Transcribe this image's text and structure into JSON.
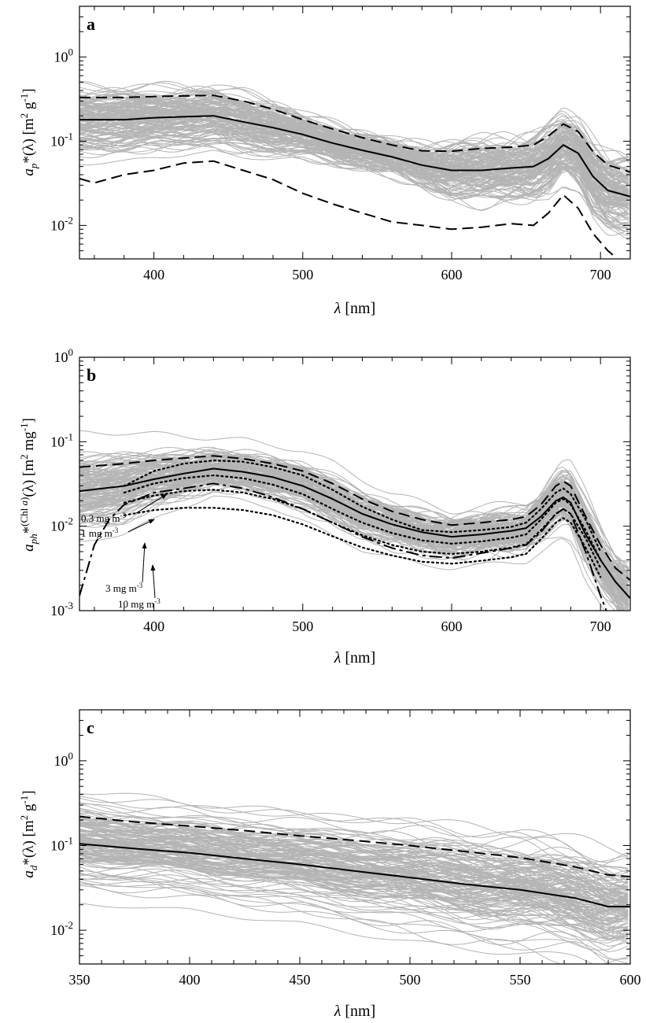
{
  "chart_data": [
    {
      "panel": "a",
      "type": "line",
      "xlabel": {
        "sym": "λ",
        "rest": " [nm]"
      },
      "ylabel": {
        "main": "a",
        "sub": "p",
        "mid": "*(λ) [m",
        "sup1": "2",
        "mid2": " g",
        "sup2": "-1",
        "end": "]"
      },
      "xlim": [
        350,
        720
      ],
      "ylim": [
        0.004,
        4
      ],
      "yscale": "log",
      "xticks": [
        400,
        500,
        600,
        700
      ],
      "yticks": [
        {
          "value": 0.01,
          "base": "10",
          "exp": "-2"
        },
        {
          "value": 0.1,
          "base": "10",
          "exp": "-1"
        },
        {
          "value": 1,
          "base": "10",
          "exp": "0"
        }
      ],
      "grid": false,
      "background_spectra": "many individual spectra (gray)",
      "series": [
        {
          "role": "mean",
          "style": "solid",
          "x": [
            350,
            380,
            400,
            420,
            440,
            460,
            480,
            500,
            520,
            540,
            560,
            580,
            600,
            620,
            640,
            655,
            665,
            675,
            685,
            695,
            705,
            720
          ],
          "y": [
            0.18,
            0.18,
            0.19,
            0.195,
            0.2,
            0.17,
            0.145,
            0.12,
            0.095,
            0.078,
            0.065,
            0.052,
            0.045,
            0.045,
            0.048,
            0.05,
            0.062,
            0.09,
            0.072,
            0.038,
            0.026,
            0.022
          ]
        },
        {
          "role": "upper",
          "style": "dashed",
          "x": [
            350,
            380,
            400,
            420,
            440,
            460,
            480,
            500,
            520,
            540,
            560,
            580,
            600,
            620,
            640,
            655,
            665,
            675,
            685,
            695,
            705,
            720
          ],
          "y": [
            0.33,
            0.33,
            0.34,
            0.345,
            0.35,
            0.3,
            0.24,
            0.18,
            0.14,
            0.11,
            0.09,
            0.077,
            0.076,
            0.082,
            0.085,
            0.09,
            0.115,
            0.16,
            0.13,
            0.075,
            0.052,
            0.043
          ]
        },
        {
          "role": "lower",
          "style": "dashed",
          "x": [
            350,
            360,
            380,
            400,
            420,
            440,
            460,
            480,
            500,
            520,
            540,
            560,
            580,
            600,
            620,
            640,
            655,
            665,
            675,
            685,
            695,
            705,
            710
          ],
          "y": [
            0.036,
            0.032,
            0.04,
            0.045,
            0.055,
            0.058,
            0.045,
            0.035,
            0.024,
            0.018,
            0.014,
            0.011,
            0.01,
            0.009,
            0.0095,
            0.0105,
            0.01,
            0.014,
            0.023,
            0.016,
            0.008,
            0.005,
            0.0042
          ]
        }
      ]
    },
    {
      "panel": "b",
      "type": "line",
      "xlabel": {
        "sym": "λ",
        "rest": " [nm]"
      },
      "ylabel": {
        "main": "a",
        "sub": "ph",
        "mid": "*",
        "supChl": "(Chl ",
        "supA": "a",
        "supClose": ")",
        "mid2": "(λ) [m",
        "sup1": "2",
        "mid3": " mg",
        "sup2": "-1",
        "end": "]"
      },
      "xlim": [
        350,
        720
      ],
      "ylim": [
        0.001,
        1
      ],
      "yscale": "log",
      "xticks": [
        400,
        500,
        600,
        700
      ],
      "yticks": [
        {
          "value": 0.001,
          "base": "10",
          "exp": "-3"
        },
        {
          "value": 0.01,
          "base": "10",
          "exp": "-2"
        },
        {
          "value": 0.1,
          "base": "10",
          "exp": "-1"
        },
        {
          "value": 1,
          "base": "10",
          "exp": "0"
        }
      ],
      "grid": false,
      "background_spectra": "many individual spectra (gray)",
      "annotations": [
        {
          "text": "0.3 mg m",
          "exp": "-3"
        },
        {
          "text": "1 mg m",
          "exp": "-3"
        },
        {
          "text": "3 mg m",
          "exp": "-3"
        },
        {
          "text": "10 mg m",
          "exp": "-3"
        }
      ],
      "series": [
        {
          "role": "mean",
          "style": "solid",
          "x": [
            350,
            380,
            400,
            420,
            440,
            460,
            480,
            500,
            520,
            540,
            560,
            580,
            600,
            620,
            640,
            650,
            660,
            670,
            675,
            680,
            690,
            700,
            710,
            720
          ],
          "y": [
            0.026,
            0.03,
            0.036,
            0.042,
            0.048,
            0.044,
            0.038,
            0.03,
            0.021,
            0.014,
            0.0105,
            0.0085,
            0.0075,
            0.008,
            0.0088,
            0.0095,
            0.013,
            0.02,
            0.022,
            0.019,
            0.008,
            0.004,
            0.0022,
            0.0014
          ]
        },
        {
          "role": "upper",
          "style": "dashed",
          "x": [
            350,
            380,
            400,
            420,
            440,
            460,
            480,
            500,
            520,
            540,
            560,
            580,
            600,
            620,
            640,
            650,
            660,
            670,
            675,
            680,
            690,
            700,
            710,
            720
          ],
          "y": [
            0.05,
            0.055,
            0.06,
            0.064,
            0.068,
            0.063,
            0.055,
            0.045,
            0.032,
            0.021,
            0.015,
            0.012,
            0.0103,
            0.011,
            0.012,
            0.013,
            0.018,
            0.03,
            0.034,
            0.03,
            0.013,
            0.006,
            0.0032,
            0.0023
          ]
        },
        {
          "role": "lower",
          "style": "dashdot",
          "x": [
            350,
            355,
            360,
            370,
            380,
            400,
            420,
            440,
            460,
            480,
            500,
            520,
            540,
            560,
            580,
            600,
            620,
            640,
            650,
            660,
            670,
            675,
            680,
            690,
            700,
            705
          ],
          "y": [
            0.0015,
            0.003,
            0.006,
            0.012,
            0.018,
            0.025,
            0.028,
            0.032,
            0.028,
            0.022,
            0.016,
            0.011,
            0.0075,
            0.0055,
            0.0045,
            0.0042,
            0.0048,
            0.0055,
            0.006,
            0.0085,
            0.014,
            0.016,
            0.014,
            0.005,
            0.0015,
            0.0009
          ]
        },
        {
          "role": "0.3 mg m-3",
          "style": "dotted",
          "x": [
            380,
            400,
            420,
            440,
            460,
            480,
            500,
            520,
            540,
            560,
            580,
            600,
            620,
            640,
            650,
            660,
            670,
            675,
            680,
            690,
            700
          ],
          "y": [
            0.03,
            0.045,
            0.055,
            0.06,
            0.058,
            0.05,
            0.04,
            0.027,
            0.017,
            0.012,
            0.009,
            0.0085,
            0.009,
            0.0098,
            0.011,
            0.016,
            0.025,
            0.028,
            0.024,
            0.012,
            0.005
          ]
        },
        {
          "role": "1 mg m-3",
          "style": "dotted",
          "x": [
            380,
            400,
            420,
            440,
            460,
            480,
            500,
            520,
            540,
            560,
            580,
            600,
            620,
            640,
            650,
            660,
            670,
            675,
            680,
            690,
            700
          ],
          "y": [
            0.025,
            0.032,
            0.037,
            0.04,
            0.037,
            0.031,
            0.024,
            0.016,
            0.011,
            0.0083,
            0.0068,
            0.0062,
            0.0066,
            0.0073,
            0.008,
            0.012,
            0.019,
            0.021,
            0.018,
            0.009,
            0.004
          ]
        },
        {
          "role": "3 mg m-3",
          "style": "dotted",
          "x": [
            380,
            400,
            420,
            440,
            460,
            480,
            500,
            520,
            540,
            560,
            580,
            600,
            620,
            640,
            650,
            660,
            670,
            675,
            680,
            690,
            700
          ],
          "y": [
            0.019,
            0.023,
            0.026,
            0.027,
            0.025,
            0.021,
            0.016,
            0.011,
            0.0078,
            0.006,
            0.005,
            0.0047,
            0.005,
            0.0056,
            0.0061,
            0.009,
            0.014,
            0.016,
            0.014,
            0.0072,
            0.0032
          ]
        },
        {
          "role": "10 mg m-3",
          "style": "dotted",
          "x": [
            380,
            400,
            420,
            440,
            460,
            480,
            500,
            520,
            540,
            560,
            580,
            600,
            620,
            640,
            650,
            660,
            670,
            675,
            680,
            690,
            700
          ],
          "y": [
            0.0135,
            0.0155,
            0.0165,
            0.0165,
            0.0155,
            0.0135,
            0.0105,
            0.0076,
            0.0056,
            0.0045,
            0.0038,
            0.0036,
            0.0039,
            0.0043,
            0.0047,
            0.007,
            0.011,
            0.0125,
            0.011,
            0.0056,
            0.0025
          ]
        }
      ]
    },
    {
      "panel": "c",
      "type": "line",
      "xlabel": {
        "sym": "λ",
        "rest": " [nm]"
      },
      "ylabel": {
        "main": "a",
        "sub": "d",
        "mid": "*(λ) [m",
        "sup1": "2",
        "mid2": " g",
        "sup2": "-1",
        "end": "]"
      },
      "xlim": [
        350,
        600
      ],
      "ylim": [
        0.004,
        4
      ],
      "yscale": "log",
      "xticks": [
        350,
        400,
        450,
        500,
        550,
        600
      ],
      "yticks": [
        {
          "value": 0.01,
          "base": "10",
          "exp": "-2"
        },
        {
          "value": 0.1,
          "base": "10",
          "exp": "-1"
        },
        {
          "value": 1,
          "base": "10",
          "exp": "0"
        }
      ],
      "grid": false,
      "background_spectra": "many individual spectra (gray)",
      "series": [
        {
          "role": "mean",
          "style": "solid",
          "x": [
            350,
            375,
            400,
            425,
            450,
            475,
            500,
            525,
            550,
            575,
            590,
            600
          ],
          "y": [
            0.105,
            0.092,
            0.082,
            0.07,
            0.06,
            0.05,
            0.042,
            0.035,
            0.03,
            0.024,
            0.019,
            0.019
          ]
        },
        {
          "role": "upper",
          "style": "dashed",
          "x": [
            350,
            375,
            400,
            425,
            450,
            475,
            500,
            525,
            550,
            575,
            590,
            600
          ],
          "y": [
            0.22,
            0.19,
            0.17,
            0.15,
            0.13,
            0.115,
            0.1,
            0.085,
            0.072,
            0.056,
            0.045,
            0.043
          ]
        }
      ]
    }
  ]
}
